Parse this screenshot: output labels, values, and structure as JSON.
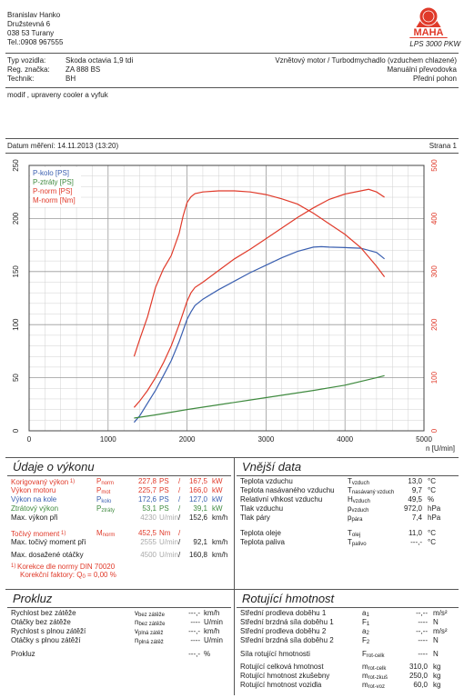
{
  "owner": {
    "name": "Branislav Hanko",
    "street": "Družstevná 6",
    "city": "038 53 Turany",
    "phone": "Tel.:0908 967555"
  },
  "logo": {
    "ring_text": "Leistungsmessung",
    "word": "MAHA",
    "model": "LPS 3000 PKW"
  },
  "vehicle": {
    "type_label": "Typ vozidla:",
    "type_value": "Skoda octavia 1,9 tdi",
    "reg_label": "Reg. značka:",
    "reg_value": "ZA 888 BS",
    "tech_label": "Technik:",
    "tech_value": "BH",
    "engine": "Vznětový motor / Turbodmychadlo (vzduchem chlazené)",
    "gearbox": "Manuální převodovka",
    "drive": "Přední pohon"
  },
  "note": "modif , upraveny cooler a vyfuk",
  "measure_date": "Datum měření: 14.11.2013 (13:20)",
  "page": "Strana 1",
  "chart_data": {
    "type": "line",
    "xlabel": "n [U/min]",
    "xlim": [
      0,
      5000
    ],
    "x_ticks": [
      "0",
      "1000",
      "2000",
      "3000",
      "4000",
      "5000"
    ],
    "ylim_left": [
      0,
      250
    ],
    "y_ticks_left": [
      "0",
      "50",
      "100",
      "150",
      "200",
      "250"
    ],
    "ylim_right": [
      0,
      500
    ],
    "y_ticks_right": [
      "0",
      "100",
      "200",
      "300",
      "400",
      "500"
    ],
    "grid": true,
    "legend_position": "top-left",
    "legend": [
      {
        "label": "P-kolo [PS]",
        "color": "#3a5fb0"
      },
      {
        "label": "P-ztráty [PS]",
        "color": "#3f8a3f"
      },
      {
        "label": "P-norm [PS]",
        "color": "#e03a2a"
      },
      {
        "label": "M-norm [Nm]",
        "color": "#e03a2a"
      }
    ],
    "series": [
      {
        "name": "P-kolo [PS]",
        "axis": "left",
        "color": "#3a5fb0",
        "x": [
          1330,
          1400,
          1500,
          1600,
          1700,
          1800,
          1900,
          2000,
          2050,
          2100,
          2200,
          2400,
          2600,
          2800,
          3000,
          3200,
          3400,
          3600,
          3700,
          3800,
          4000,
          4200,
          4400,
          4500
        ],
        "y": [
          8,
          14,
          26,
          38,
          52,
          66,
          84,
          105,
          112,
          118,
          124,
          133,
          141,
          149,
          156,
          163,
          169,
          173,
          173.5,
          173,
          172.6,
          172,
          168,
          162
        ]
      },
      {
        "name": "P-ztráty [PS]",
        "axis": "left",
        "color": "#3f8a3f",
        "x": [
          1330,
          1600,
          2000,
          2400,
          2800,
          3200,
          3600,
          4000,
          4400,
          4500
        ],
        "y": [
          12,
          15,
          20,
          24.5,
          29,
          33.5,
          38,
          43,
          50,
          52
        ]
      },
      {
        "name": "P-norm [PS]",
        "axis": "left",
        "color": "#e03a2a",
        "x": [
          1330,
          1400,
          1500,
          1600,
          1700,
          1800,
          1900,
          2000,
          2050,
          2100,
          2200,
          2400,
          2600,
          2800,
          3000,
          3200,
          3400,
          3600,
          3800,
          4000,
          4200,
          4300,
          4400,
          4500
        ],
        "y": [
          22,
          28,
          38,
          50,
          64,
          80,
          100,
          122,
          130,
          135,
          140,
          151,
          162,
          171,
          181,
          191,
          201,
          210,
          218,
          223,
          226,
          227.5,
          225,
          220
        ]
      },
      {
        "name": "M-norm [Nm]",
        "axis": "right",
        "color": "#e03a2a",
        "x": [
          1330,
          1400,
          1500,
          1600,
          1700,
          1800,
          1900,
          1950,
          2000,
          2050,
          2100,
          2200,
          2400,
          2600,
          2800,
          3000,
          3200,
          3400,
          3600,
          3800,
          4000,
          4200,
          4400,
          4500
        ],
        "y": [
          140,
          172,
          215,
          270,
          305,
          330,
          372,
          405,
          430,
          441,
          447,
          450,
          452,
          452,
          450,
          445,
          437,
          427,
          410,
          390,
          370,
          345,
          310,
          290
        ]
      }
    ]
  },
  "results": {
    "title": "Údaje o výkonu",
    "rows": [
      {
        "label": "Korigovaný výkon",
        "sup": "1)",
        "sym": "P",
        "sub": "norm",
        "v1": "227,8",
        "u1": "PS",
        "v2": "167,5",
        "u2": "kW",
        "color": "red"
      },
      {
        "label": "Výkon motoru",
        "sup": "",
        "sym": "P",
        "sub": "mot",
        "v1": "225,7",
        "u1": "PS",
        "v2": "166,0",
        "u2": "kW",
        "color": "red"
      },
      {
        "label": "Výkon na kole",
        "sup": "",
        "sym": "P",
        "sub": "kolo",
        "v1": "172,6",
        "u1": "PS",
        "v2": "127,0",
        "u2": "kW",
        "color": "blue"
      },
      {
        "label": "Ztrátový výkon",
        "sup": "",
        "sym": "P",
        "sub": "ztráty",
        "v1": "53,1",
        "u1": "PS",
        "v2": "39,1",
        "u2": "kW",
        "color": "green"
      },
      {
        "label": "Max. výkon při",
        "sup": "",
        "sym": "",
        "sub": "",
        "v1": "4230",
        "u1": "U/min",
        "v2": "152,6",
        "u2": "km/h",
        "color": "dark"
      },
      {
        "label": "Točivý moment",
        "sup": "1)",
        "sym": "M",
        "sub": "norm",
        "v1": "452,5",
        "u1": "Nm",
        "v2": "",
        "u2": "",
        "color": "red"
      },
      {
        "label": "Max. točivý moment při",
        "sup": "",
        "sym": "",
        "sub": "",
        "v1": "2555",
        "u1": "U/min",
        "v2": "92,1",
        "u2": "km/h",
        "color": "dark"
      },
      {
        "label": "Max. dosažené otáčky",
        "sup": "",
        "sym": "",
        "sub": "",
        "v1": "4500",
        "u1": "U/min",
        "v2": "160,8",
        "u2": "km/h",
        "color": "dark"
      }
    ],
    "footnote": "Korekce dle normy DIN 70020",
    "footnote_sup": "1)",
    "factor": "Korekční faktory: Q",
    "factor_sub": "0",
    "factor_value": "=   0,00 %"
  },
  "external": {
    "title": "Vnější data",
    "rows": [
      {
        "label": "Teplota vzduchu",
        "sym": "T",
        "sub": "vzduch",
        "val": "13,0",
        "unit": "°C"
      },
      {
        "label": "Teplota nasávaného vzduchu",
        "sym": "T",
        "sub": "nasávaný vzduch",
        "val": "9,7",
        "unit": "°C"
      },
      {
        "label": "Relativní vlhkost vzduchu",
        "sym": "H",
        "sub": "vzduch",
        "val": "49,5",
        "unit": "%"
      },
      {
        "label": "Tlak vzduchu",
        "sym": "p",
        "sub": "vzduch",
        "val": "972,0",
        "unit": "hPa"
      },
      {
        "label": "Tlak páry",
        "sym": "p",
        "sub": "pára",
        "val": "7,4",
        "unit": "hPa"
      },
      {
        "label": "Teplota oleje",
        "sym": "T",
        "sub": "olej",
        "val": "11,0",
        "unit": "°C"
      },
      {
        "label": "Teplota paliva",
        "sym": "T",
        "sub": "palivo",
        "val": "---,-",
        "unit": "°C"
      }
    ]
  },
  "prokluz": {
    "title": "Prokluz",
    "rows": [
      {
        "label": "Rychlost bez zátěže",
        "sym": "v",
        "sub": "bez zátěže",
        "val": "---,-",
        "unit": "km/h"
      },
      {
        "label": "Otáčky bez zátěže",
        "sym": "n",
        "sub": "bez zátěže",
        "val": "----",
        "unit": "U/min"
      },
      {
        "label": "Rychlost s plnou zátěží",
        "sym": "v",
        "sub": "plná zátěž",
        "val": "---,-",
        "unit": "km/h"
      },
      {
        "label": "Otáčky s plnou zátěží",
        "sym": "n",
        "sub": "plná zátěž",
        "val": "----",
        "unit": "U/min"
      },
      {
        "label": "Prokluz",
        "sym": "",
        "sub": "",
        "val": "---,-",
        "unit": "%"
      }
    ]
  },
  "rotating": {
    "title": "Rotující hmotnost",
    "rows": [
      {
        "label": "Střední prodleva doběhu 1",
        "sym": "a",
        "sub": "1",
        "val": "--,--",
        "unit": "m/s²"
      },
      {
        "label": "Střední brzdná síla doběhu 1",
        "sym": "F",
        "sub": "1",
        "val": "----",
        "unit": "N"
      },
      {
        "label": "Střední prodleva doběhu 2",
        "sym": "a",
        "sub": "2",
        "val": "--,--",
        "unit": "m/s²"
      },
      {
        "label": "Střední brzdná síla doběhu 2",
        "sym": "F",
        "sub": "2",
        "val": "----",
        "unit": "N"
      },
      {
        "label": "Síla rotující hmotnosti",
        "sym": "F",
        "sub": "rot-celk",
        "val": "----",
        "unit": "N"
      },
      {
        "label": "Rotující celková hmotnost",
        "sym": "m",
        "sub": "rot-celk",
        "val": "310,0",
        "unit": "kg"
      },
      {
        "label": "Rotující hmotnost zkušebny",
        "sym": "m",
        "sub": "rot-zkuš",
        "val": "250,0",
        "unit": "kg"
      },
      {
        "label": "Rotující hmotnost vozidla",
        "sym": "m",
        "sub": "rot-voz",
        "val": "60,0",
        "unit": "kg"
      }
    ]
  }
}
